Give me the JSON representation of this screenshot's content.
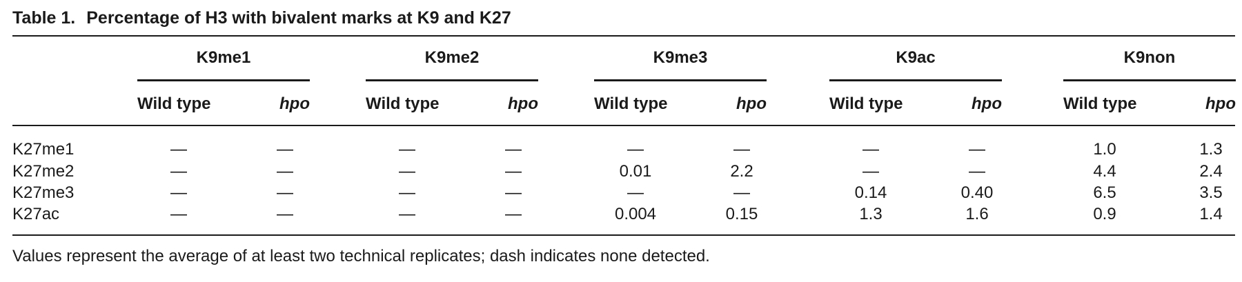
{
  "caption": {
    "label": "Table 1.",
    "title": "Percentage of H3 with bivalent marks at K9 and K27"
  },
  "groups": [
    {
      "name": "K9me1",
      "sub": [
        "Wild type",
        "hpo"
      ]
    },
    {
      "name": "K9me2",
      "sub": [
        "Wild type",
        "hpo"
      ]
    },
    {
      "name": "K9me3",
      "sub": [
        "Wild type",
        "hpo"
      ]
    },
    {
      "name": "K9ac",
      "sub": [
        "Wild type",
        "hpo"
      ]
    },
    {
      "name": "K9non",
      "sub": [
        "Wild type",
        "hpo"
      ]
    }
  ],
  "rows": [
    {
      "label": "K27me1",
      "values": [
        "—",
        "—",
        "—",
        "—",
        "—",
        "—",
        "—",
        "—",
        "1.0",
        "1.3"
      ]
    },
    {
      "label": "K27me2",
      "values": [
        "—",
        "—",
        "—",
        "—",
        "0.01",
        "2.2",
        "—",
        "—",
        "4.4",
        "2.4"
      ]
    },
    {
      "label": "K27me3",
      "values": [
        "—",
        "—",
        "—",
        "—",
        "—",
        "—",
        "0.14",
        "0.40",
        "6.5",
        "3.5"
      ]
    },
    {
      "label": "K27ac",
      "values": [
        "—",
        "—",
        "—",
        "—",
        "0.004",
        "0.15",
        "1.3",
        "1.6",
        "0.9",
        "1.4"
      ]
    }
  ],
  "footnote": "Values represent the average of at least two technical replicates; dash indicates none detected."
}
